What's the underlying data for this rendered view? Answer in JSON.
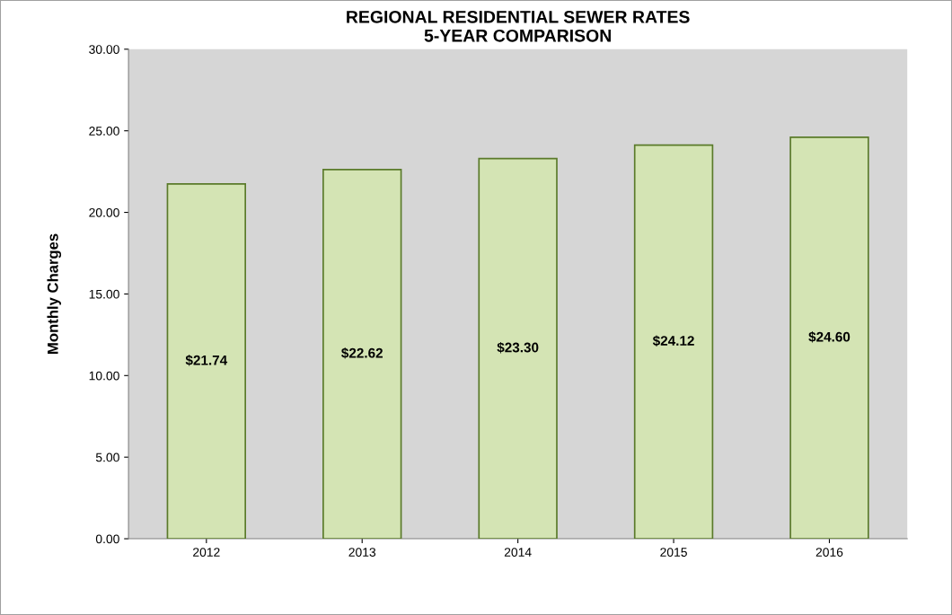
{
  "chart_data": {
    "type": "bar",
    "title": "REGIONAL RESIDENTIAL SEWER RATES\n5-YEAR COMPARISON",
    "ylabel": "Monthly Charges",
    "categories": [
      "2012",
      "2013",
      "2014",
      "2015",
      "2016"
    ],
    "values": [
      21.74,
      22.62,
      23.3,
      24.12,
      24.6
    ],
    "value_labels": [
      "$21.74",
      "$22.62",
      "$23.30",
      "$24.12",
      "$24.60"
    ],
    "color": "#d4e4b4",
    "ylim": [
      0,
      30
    ],
    "yticks": [
      {
        "value": 0,
        "label": "0.00"
      },
      {
        "value": 5,
        "label": "5.00"
      },
      {
        "value": 10,
        "label": "10.00"
      },
      {
        "value": 15,
        "label": "15.00"
      },
      {
        "value": 20,
        "label": "20.00"
      },
      {
        "value": 25,
        "label": "25.00"
      },
      {
        "value": 30,
        "label": "30.00"
      }
    ],
    "grid": false
  }
}
